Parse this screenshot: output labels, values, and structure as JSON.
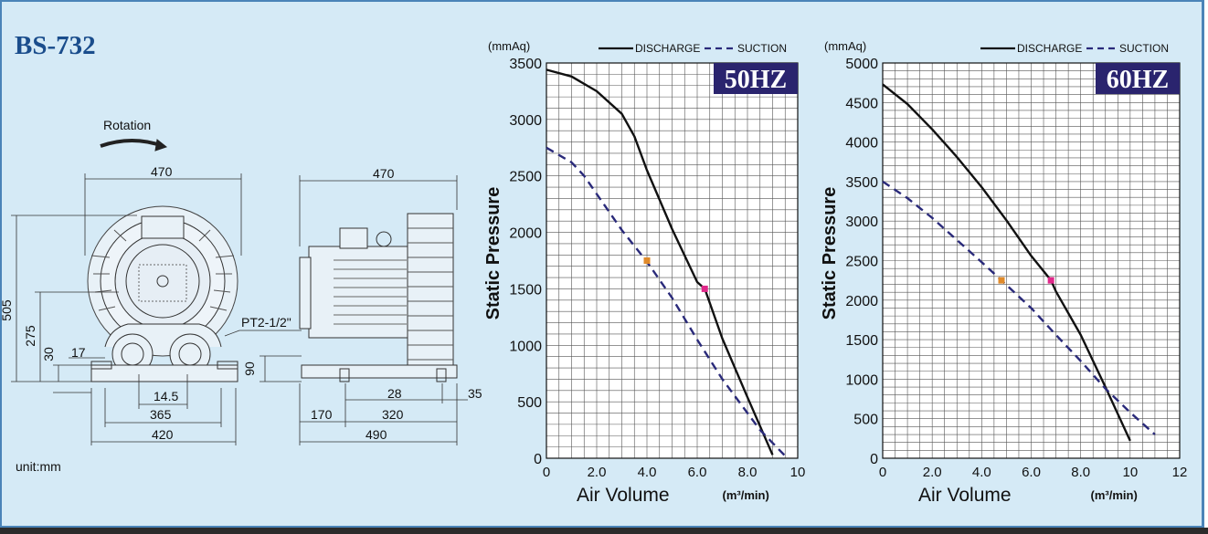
{
  "model": "BS-732",
  "unit_label": "unit:mm",
  "drawing": {
    "rotation_label": "Rotation",
    "front_view": {
      "width_top": "470",
      "height": "505",
      "inlet_height": "275",
      "base_height": "30",
      "flange_offset": "17",
      "pipe_spec": "PT2-1/2\"",
      "port_spacing": "14.5",
      "foot_span": "365",
      "base_width": "420"
    },
    "side_view": {
      "width_top": "470",
      "base_height": "90",
      "foot_inner": "28",
      "foot_offset": "35",
      "left_offset": "170",
      "foot_span": "320",
      "total_length": "490"
    }
  },
  "colors": {
    "background": "#d5eaf6",
    "discharge": "#111111",
    "suction": "#2a2a7a",
    "badge": "#2a246e",
    "marker_discharge": "#e0288a",
    "marker_suction": "#e08a2a",
    "title_blue": "#1a4d8c"
  },
  "chart_data": [
    {
      "type": "line",
      "badge": "50HZ",
      "unit_top": "(mmAq)",
      "ylabel": "Static Pressure",
      "xlabel": "Air Volume",
      "xunit": "(m³/min)",
      "xlim": [
        0,
        10
      ],
      "ylim": [
        0,
        3500
      ],
      "x_ticks": [
        "0",
        "2.0",
        "4.0",
        "6.0",
        "8.0",
        "10"
      ],
      "y_ticks": [
        "0",
        "500",
        "1000",
        "1500",
        "2000",
        "2500",
        "3000",
        "3500"
      ],
      "grid": true,
      "legend_position": "top",
      "series": [
        {
          "name": "DISCHARGE",
          "style": "solid",
          "points": [
            [
              0,
              3440
            ],
            [
              1,
              3380
            ],
            [
              2,
              3250
            ],
            [
              3,
              3050
            ],
            [
              3.5,
              2850
            ],
            [
              4,
              2550
            ],
            [
              5,
              2030
            ],
            [
              6,
              1560
            ],
            [
              6.3,
              1500
            ],
            [
              7,
              1060
            ],
            [
              8,
              540
            ],
            [
              9,
              30
            ]
          ],
          "marker": [
            6.3,
            1500
          ]
        },
        {
          "name": "SUCTION",
          "style": "dashed",
          "points": [
            [
              0,
              2750
            ],
            [
              1,
              2620
            ],
            [
              1.5,
              2500
            ],
            [
              2,
              2340
            ],
            [
              3,
              2020
            ],
            [
              4,
              1740
            ],
            [
              5,
              1420
            ],
            [
              6,
              1050
            ],
            [
              7,
              700
            ],
            [
              8,
              400
            ],
            [
              8.5,
              250
            ],
            [
              9.5,
              20
            ]
          ],
          "marker": [
            4.0,
            1750
          ]
        }
      ]
    },
    {
      "type": "line",
      "badge": "60HZ",
      "unit_top": "(mmAq)",
      "ylabel": "Static Pressure",
      "xlabel": "Air Volume",
      "xunit": "(m³/min)",
      "xlim": [
        0,
        12
      ],
      "ylim": [
        0,
        5000
      ],
      "x_ticks": [
        "0",
        "2.0",
        "4.0",
        "6.0",
        "8.0",
        "10",
        "12"
      ],
      "y_ticks": [
        "0",
        "500",
        "1000",
        "1500",
        "2000",
        "2500",
        "3000",
        "3500",
        "4000",
        "4500",
        "5000"
      ],
      "grid": true,
      "legend_position": "top",
      "series": [
        {
          "name": "DISCHARGE",
          "style": "solid",
          "points": [
            [
              0,
              4730
            ],
            [
              1,
              4480
            ],
            [
              2,
              4160
            ],
            [
              3,
              3810
            ],
            [
              4,
              3430
            ],
            [
              5,
              3010
            ],
            [
              6,
              2560
            ],
            [
              6.8,
              2250
            ],
            [
              7,
              2110
            ],
            [
              8,
              1560
            ],
            [
              9,
              900
            ],
            [
              10,
              220
            ]
          ],
          "marker": [
            6.8,
            2250
          ]
        },
        {
          "name": "SUCTION",
          "style": "dashed",
          "points": [
            [
              0,
              3500
            ],
            [
              1,
              3290
            ],
            [
              2,
              3040
            ],
            [
              3,
              2760
            ],
            [
              4,
              2480
            ],
            [
              4.8,
              2250
            ],
            [
              6,
              1900
            ],
            [
              7,
              1560
            ],
            [
              8,
              1230
            ],
            [
              9,
              880
            ],
            [
              10,
              580
            ],
            [
              11,
              300
            ]
          ],
          "marker": [
            4.8,
            2250
          ]
        }
      ]
    }
  ]
}
